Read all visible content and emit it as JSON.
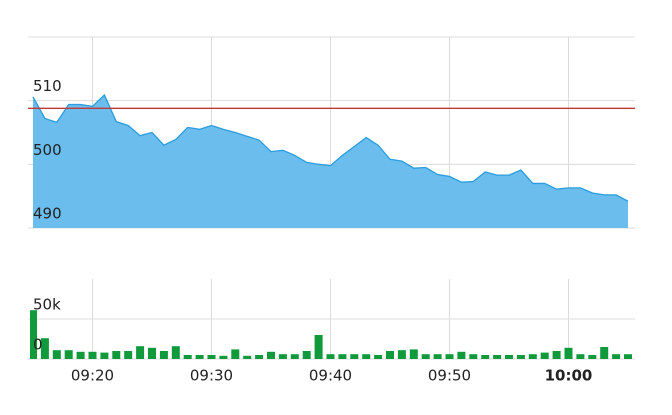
{
  "chart_data": [
    {
      "type": "area",
      "values": [
        510.6,
        507.2,
        506.6,
        509.4,
        509.4,
        509.1,
        510.9,
        506.7,
        506.1,
        504.5,
        505.0,
        503.0,
        503.9,
        505.8,
        505.5,
        506.1,
        505.5,
        505.0,
        504.4,
        503.8,
        502.0,
        502.2,
        501.4,
        500.3,
        500.0,
        499.8,
        501.4,
        502.8,
        504.2,
        503.0,
        500.8,
        500.5,
        499.4,
        499.5,
        498.4,
        498.1,
        497.2,
        497.3,
        498.8,
        498.3,
        498.3,
        499.1,
        497.0,
        497.0,
        496.1,
        496.3,
        496.3,
        495.5,
        495.2,
        495.2,
        494.2
      ],
      "color": "#6bbdee",
      "line_color": "#2b9ddc",
      "reference_line": 508.8,
      "reference_color": "#c0393b",
      "ylim": [
        490,
        520
      ],
      "yticks": [
        490,
        500,
        510
      ],
      "grid": true
    },
    {
      "type": "bar",
      "categories": [
        null,
        null,
        null,
        null,
        null,
        "09:20",
        null,
        null,
        null,
        null,
        null,
        null,
        null,
        null,
        null,
        "09:30",
        null,
        null,
        null,
        null,
        null,
        null,
        null,
        null,
        null,
        "09:40",
        null,
        null,
        null,
        null,
        null,
        null,
        null,
        null,
        null,
        "09:50",
        null,
        null,
        null,
        null,
        null,
        null,
        null,
        null,
        null,
        "10:00",
        null,
        null,
        null,
        null,
        null
      ],
      "values": [
        61000,
        26000,
        11000,
        11000,
        9000,
        9000,
        8000,
        10000,
        10000,
        16000,
        14000,
        10000,
        16000,
        5000,
        5000,
        5000,
        4000,
        12000,
        4000,
        5000,
        9000,
        6000,
        6000,
        10000,
        30000,
        6000,
        6000,
        6000,
        6000,
        5000,
        10000,
        11000,
        12000,
        6000,
        6000,
        6000,
        9000,
        6000,
        5000,
        5000,
        5000,
        5000,
        6000,
        8000,
        10000,
        14000,
        6000,
        5000,
        15000,
        6000,
        6000
      ],
      "color": "#109a3c",
      "ylim": [
        0,
        100000
      ],
      "yticks": [
        0,
        {
          "value": 50000,
          "label": "50k"
        }
      ],
      "grid": true
    }
  ]
}
